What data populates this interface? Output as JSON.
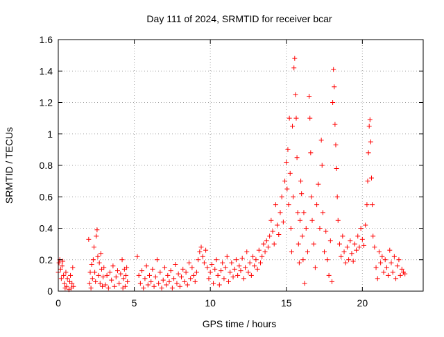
{
  "chart_data": {
    "type": "scatter",
    "title": "Day 111 of 2024, SRMTID for receiver bcar",
    "xlabel": "GPS time / hours",
    "ylabel": "SRMTID / TECUs",
    "xlim": [
      0,
      24
    ],
    "ylim": [
      0,
      1.6
    ],
    "x_ticks": [
      0,
      5,
      10,
      15,
      20
    ],
    "y_ticks": [
      0,
      0.2,
      0.4,
      0.6,
      0.8,
      1,
      1.2,
      1.4,
      1.6
    ],
    "x_tick_labels": [
      "0",
      "5",
      "10",
      "15",
      "20"
    ],
    "y_tick_labels": [
      "0",
      "0.2",
      "0.4",
      "0.6",
      "0.8",
      "1",
      "1.2",
      "1.4",
      "1.6"
    ],
    "grid": true,
    "marker": "+",
    "series": [
      {
        "name": "SRMTID",
        "color": "#ff0000",
        "points": [
          [
            0.0,
            0.12
          ],
          [
            0.05,
            0.18
          ],
          [
            0.1,
            0.2
          ],
          [
            0.15,
            0.14
          ],
          [
            0.2,
            0.08
          ],
          [
            0.25,
            0.16
          ],
          [
            0.3,
            0.19
          ],
          [
            0.35,
            0.1
          ],
          [
            0.4,
            0.05
          ],
          [
            0.45,
            0.02
          ],
          [
            0.5,
            0.12
          ],
          [
            0.55,
            0.03
          ],
          [
            0.6,
            0.08
          ],
          [
            0.7,
            0.01
          ],
          [
            0.75,
            0.06
          ],
          [
            0.8,
            0.1
          ],
          [
            0.85,
            0.02
          ],
          [
            0.9,
            0.05
          ],
          [
            0.95,
            0.15
          ],
          [
            1.0,
            0.03
          ],
          [
            2.0,
            0.33
          ],
          [
            2.05,
            0.05
          ],
          [
            2.1,
            0.12
          ],
          [
            2.15,
            0.02
          ],
          [
            2.2,
            0.17
          ],
          [
            2.25,
            0.08
          ],
          [
            2.3,
            0.2
          ],
          [
            2.35,
            0.28
          ],
          [
            2.4,
            0.12
          ],
          [
            2.45,
            0.06
          ],
          [
            2.5,
            0.35
          ],
          [
            2.55,
            0.39
          ],
          [
            2.6,
            0.22
          ],
          [
            2.65,
            0.1
          ],
          [
            2.7,
            0.18
          ],
          [
            2.75,
            0.05
          ],
          [
            2.8,
            0.24
          ],
          [
            2.85,
            0.14
          ],
          [
            2.9,
            0.03
          ],
          [
            2.95,
            0.09
          ],
          [
            3.0,
            0.15
          ],
          [
            3.1,
            0.04
          ],
          [
            3.2,
            0.1
          ],
          [
            3.3,
            0.02
          ],
          [
            3.4,
            0.12
          ],
          [
            3.5,
            0.07
          ],
          [
            3.6,
            0.16
          ],
          [
            3.7,
            0.03
          ],
          [
            3.8,
            0.09
          ],
          [
            3.9,
            0.13
          ],
          [
            4.0,
            0.05
          ],
          [
            4.1,
            0.11
          ],
          [
            4.2,
            0.2
          ],
          [
            4.25,
            0.02
          ],
          [
            4.3,
            0.08
          ],
          [
            4.35,
            0.14
          ],
          [
            4.4,
            0.03
          ],
          [
            4.45,
            0.1
          ],
          [
            4.5,
            0.15
          ],
          [
            4.55,
            0.06
          ],
          [
            5.2,
            0.22
          ],
          [
            5.3,
            0.1
          ],
          [
            5.4,
            0.05
          ],
          [
            5.5,
            0.13
          ],
          [
            5.6,
            0.02
          ],
          [
            5.7,
            0.08
          ],
          [
            5.8,
            0.16
          ],
          [
            5.9,
            0.04
          ],
          [
            6.0,
            0.1
          ],
          [
            6.1,
            0.06
          ],
          [
            6.2,
            0.14
          ],
          [
            6.3,
            0.03
          ],
          [
            6.4,
            0.09
          ],
          [
            6.5,
            0.2
          ],
          [
            6.6,
            0.05
          ],
          [
            6.7,
            0.12
          ],
          [
            6.8,
            0.02
          ],
          [
            6.9,
            0.07
          ],
          [
            7.0,
            0.15
          ],
          [
            7.1,
            0.04
          ],
          [
            7.2,
            0.1
          ],
          [
            7.3,
            0.06
          ],
          [
            7.4,
            0.13
          ],
          [
            7.5,
            0.02
          ],
          [
            7.6,
            0.08
          ],
          [
            7.7,
            0.17
          ],
          [
            7.8,
            0.05
          ],
          [
            7.9,
            0.11
          ],
          [
            8.0,
            0.03
          ],
          [
            8.1,
            0.09
          ],
          [
            8.2,
            0.14
          ],
          [
            8.3,
            0.06
          ],
          [
            8.4,
            0.12
          ],
          [
            8.5,
            0.04
          ],
          [
            8.6,
            0.18
          ],
          [
            8.7,
            0.08
          ],
          [
            8.8,
            0.15
          ],
          [
            8.9,
            0.1
          ],
          [
            9.0,
            0.06
          ],
          [
            9.1,
            0.12
          ],
          [
            9.2,
            0.2
          ],
          [
            9.3,
            0.25
          ],
          [
            9.4,
            0.28
          ],
          [
            9.5,
            0.22
          ],
          [
            9.6,
            0.18
          ],
          [
            9.7,
            0.26
          ],
          [
            9.8,
            0.15
          ],
          [
            9.9,
            0.08
          ],
          [
            10.0,
            0.12
          ],
          [
            10.1,
            0.17
          ],
          [
            10.2,
            0.05
          ],
          [
            10.3,
            0.14
          ],
          [
            10.4,
            0.2
          ],
          [
            10.5,
            0.1
          ],
          [
            10.6,
            0.04
          ],
          [
            10.7,
            0.13
          ],
          [
            10.8,
            0.18
          ],
          [
            10.9,
            0.08
          ],
          [
            11.0,
            0.15
          ],
          [
            11.1,
            0.22
          ],
          [
            11.2,
            0.06
          ],
          [
            11.3,
            0.12
          ],
          [
            11.4,
            0.18
          ],
          [
            11.5,
            0.09
          ],
          [
            11.6,
            0.14
          ],
          [
            11.7,
            0.2
          ],
          [
            11.8,
            0.1
          ],
          [
            11.9,
            0.16
          ],
          [
            12.0,
            0.13
          ],
          [
            12.1,
            0.21
          ],
          [
            12.2,
            0.08
          ],
          [
            12.3,
            0.15
          ],
          [
            12.4,
            0.25
          ],
          [
            12.5,
            0.12
          ],
          [
            12.6,
            0.18
          ],
          [
            12.7,
            0.1
          ],
          [
            12.8,
            0.22
          ],
          [
            12.9,
            0.16
          ],
          [
            13.0,
            0.2
          ],
          [
            13.1,
            0.14
          ],
          [
            13.2,
            0.26
          ],
          [
            13.3,
            0.18
          ],
          [
            13.4,
            0.22
          ],
          [
            13.5,
            0.3
          ],
          [
            13.6,
            0.25
          ],
          [
            13.7,
            0.32
          ],
          [
            13.8,
            0.28
          ],
          [
            13.9,
            0.35
          ],
          [
            14.0,
            0.45
          ],
          [
            14.1,
            0.38
          ],
          [
            14.2,
            0.3
          ],
          [
            14.3,
            0.55
          ],
          [
            14.4,
            0.42
          ],
          [
            14.5,
            0.36
          ],
          [
            14.6,
            0.5
          ],
          [
            14.7,
            0.6
          ],
          [
            14.8,
            0.44
          ],
          [
            14.9,
            0.7
          ],
          [
            15.0,
            0.82
          ],
          [
            15.05,
            0.65
          ],
          [
            15.1,
            0.9
          ],
          [
            15.15,
            0.55
          ],
          [
            15.2,
            1.1
          ],
          [
            15.25,
            0.75
          ],
          [
            15.3,
            0.4
          ],
          [
            15.35,
            0.25
          ],
          [
            15.4,
            1.05
          ],
          [
            15.45,
            0.6
          ],
          [
            15.5,
            1.42
          ],
          [
            15.55,
            1.48
          ],
          [
            15.6,
            1.25
          ],
          [
            15.65,
            1.1
          ],
          [
            15.7,
            0.85
          ],
          [
            15.75,
            0.5
          ],
          [
            15.8,
            0.3
          ],
          [
            15.85,
            0.18
          ],
          [
            15.9,
            0.45
          ],
          [
            15.95,
            0.7
          ],
          [
            16.0,
            0.62
          ],
          [
            16.05,
            0.35
          ],
          [
            16.1,
            0.2
          ],
          [
            16.15,
            0.5
          ],
          [
            16.2,
            0.05
          ],
          [
            16.3,
            0.4
          ],
          [
            16.4,
            0.25
          ],
          [
            16.5,
            1.24
          ],
          [
            16.55,
            1.1
          ],
          [
            16.6,
            0.88
          ],
          [
            16.65,
            0.6
          ],
          [
            16.7,
            0.45
          ],
          [
            16.8,
            0.3
          ],
          [
            16.9,
            0.15
          ],
          [
            17.0,
            0.55
          ],
          [
            17.1,
            0.68
          ],
          [
            17.2,
            0.4
          ],
          [
            17.3,
            0.96
          ],
          [
            17.35,
            0.8
          ],
          [
            17.4,
            0.5
          ],
          [
            17.5,
            0.25
          ],
          [
            17.6,
            0.38
          ],
          [
            17.7,
            0.2
          ],
          [
            17.8,
            0.1
          ],
          [
            17.9,
            0.32
          ],
          [
            18.0,
            0.06
          ],
          [
            18.05,
            1.2
          ],
          [
            18.1,
            1.41
          ],
          [
            18.15,
            1.3
          ],
          [
            18.2,
            1.06
          ],
          [
            18.25,
            0.93
          ],
          [
            18.3,
            0.78
          ],
          [
            18.35,
            0.6
          ],
          [
            18.4,
            0.45
          ],
          [
            18.5,
            0.3
          ],
          [
            18.6,
            0.22
          ],
          [
            18.7,
            0.35
          ],
          [
            18.8,
            0.25
          ],
          [
            18.9,
            0.18
          ],
          [
            19.0,
            0.28
          ],
          [
            19.1,
            0.2
          ],
          [
            19.2,
            0.32
          ],
          [
            19.3,
            0.24
          ],
          [
            19.4,
            0.19
          ],
          [
            19.5,
            0.3
          ],
          [
            19.6,
            0.26
          ],
          [
            19.7,
            0.35
          ],
          [
            19.8,
            0.28
          ],
          [
            19.9,
            0.4
          ],
          [
            20.0,
            0.33
          ],
          [
            20.1,
            0.29
          ],
          [
            20.2,
            0.42
          ],
          [
            20.3,
            0.55
          ],
          [
            20.35,
            0.7
          ],
          [
            20.4,
            0.88
          ],
          [
            20.45,
            1.05
          ],
          [
            20.5,
            1.09
          ],
          [
            20.55,
            0.95
          ],
          [
            20.6,
            0.72
          ],
          [
            20.65,
            0.55
          ],
          [
            20.7,
            0.35
          ],
          [
            20.8,
            0.28
          ],
          [
            20.9,
            0.15
          ],
          [
            21.0,
            0.08
          ],
          [
            21.1,
            0.25
          ],
          [
            21.2,
            0.18
          ],
          [
            21.3,
            0.22
          ],
          [
            21.4,
            0.12
          ],
          [
            21.5,
            0.2
          ],
          [
            21.6,
            0.15
          ],
          [
            21.7,
            0.1
          ],
          [
            21.8,
            0.26
          ],
          [
            21.9,
            0.18
          ],
          [
            22.0,
            0.12
          ],
          [
            22.1,
            0.22
          ],
          [
            22.2,
            0.08
          ],
          [
            22.3,
            0.16
          ],
          [
            22.4,
            0.2
          ],
          [
            22.5,
            0.1
          ],
          [
            22.6,
            0.14
          ],
          [
            22.7,
            0.12
          ],
          [
            22.8,
            0.11
          ]
        ]
      }
    ]
  }
}
